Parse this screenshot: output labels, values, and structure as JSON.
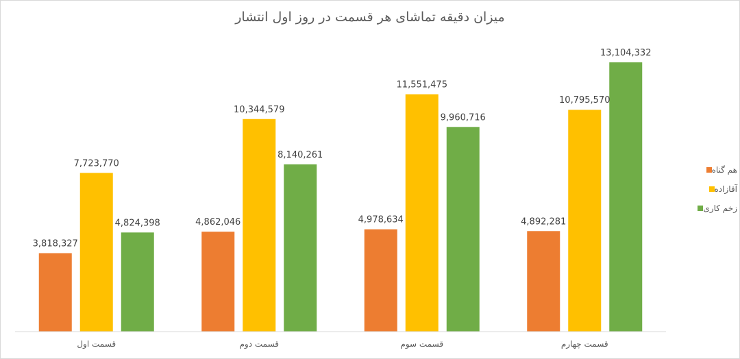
{
  "chart_data": {
    "type": "bar",
    "title": "میزان دقیقه تماشای هر قسمت در روز اول انتشار",
    "categories": [
      "قسمت اول",
      "قسمت دوم",
      "قسمت سوم",
      "قسمت چهارم"
    ],
    "series": [
      {
        "name": "هم گناه",
        "color": "#ED7D31",
        "values": [
          3818327,
          4862046,
          4978634,
          4892281
        ],
        "labels": [
          "3,818,327",
          "4,862,046",
          "4,978,634",
          "4,892,281"
        ]
      },
      {
        "name": "آقازاده",
        "color": "#FFC000",
        "values": [
          7723770,
          10344579,
          11551475,
          10795570
        ],
        "labels": [
          "7,723,770",
          "10,344,579",
          "11,551,475",
          "10,795,570"
        ]
      },
      {
        "name": "زخم کاری",
        "color": "#70AD47",
        "values": [
          4824398,
          8140261,
          9960716,
          13104332
        ],
        "labels": [
          "4,824,398",
          "8,140,261",
          "9,960,716",
          "13,104,332"
        ]
      }
    ],
    "ylim": [
      0,
      14000000
    ],
    "grid": false,
    "legend_position": "right",
    "xlabel": "",
    "ylabel": ""
  }
}
